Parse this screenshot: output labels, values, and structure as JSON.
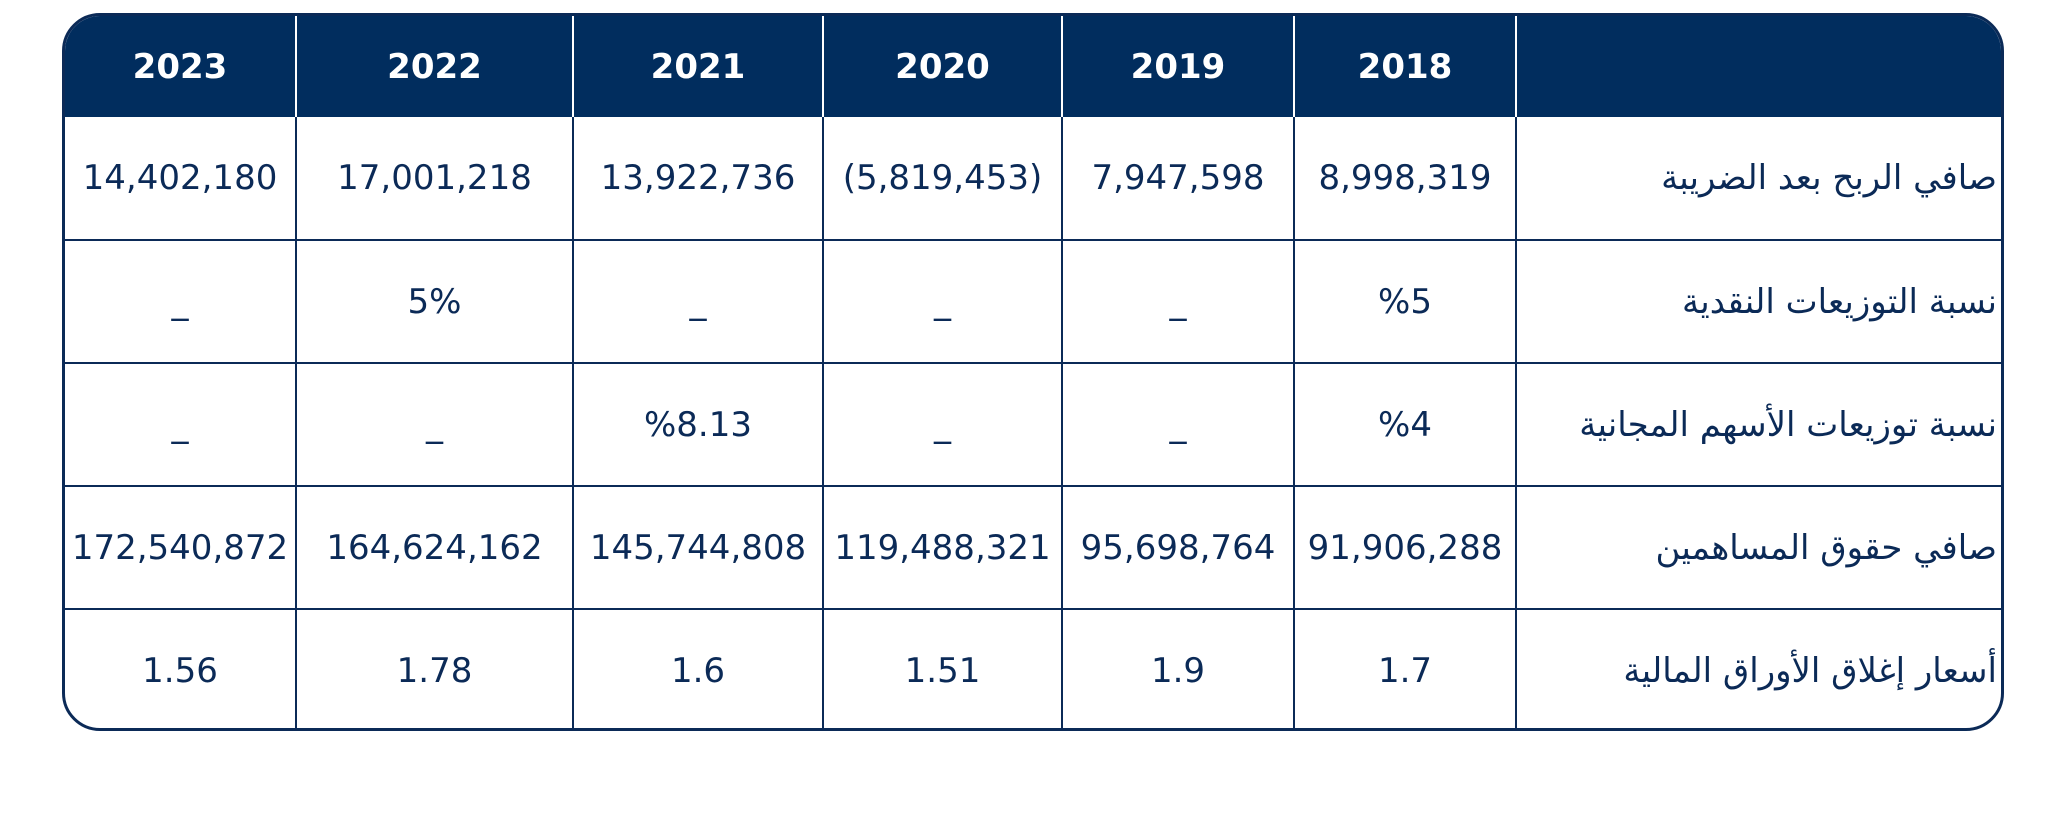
{
  "table": {
    "years": [
      "2023",
      "2022",
      "2021",
      "2020",
      "2019",
      "2018"
    ],
    "rows": [
      {
        "label": "صافي الربح بعد الضريبة",
        "values": [
          "14,402,180",
          "17,001,218",
          "13,922,736",
          "(5,819,453)",
          "7,947,598",
          "8,998,319"
        ]
      },
      {
        "label": "نسبة التوزيعات النقدية",
        "values": [
          "_",
          "5%",
          "_",
          "_",
          "_",
          "%5"
        ]
      },
      {
        "label": "نسبة توزيعات الأسهم المجانية",
        "values": [
          "_",
          "_",
          "%8.13",
          "_",
          "_",
          "%4"
        ]
      },
      {
        "label": "صافي حقوق المساهمين",
        "values": [
          "172,540,872",
          "164,624,162",
          "145,744,808",
          "119,488,321",
          "95,698,764",
          "91,906,288"
        ]
      },
      {
        "label": "أسعار إغلاق الأوراق المالية",
        "values": [
          "1.56",
          "1.78",
          "1.6",
          "1.51",
          "1.9",
          "1.7"
        ]
      }
    ]
  },
  "colors": {
    "header_bg": "#012d5e",
    "header_text": "#ffffff",
    "border": "#0b2a57",
    "cell_text": "#0b2a57"
  }
}
